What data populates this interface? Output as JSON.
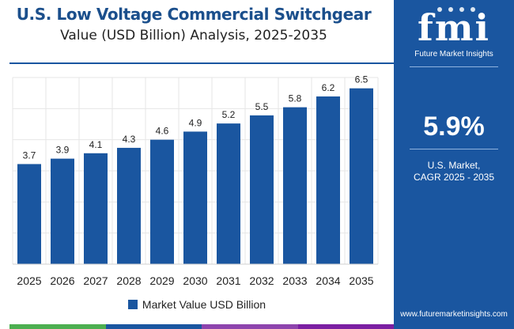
{
  "header": {
    "title": "U.S. Low Voltage Commercial Switchgear",
    "subtitle": "Value (USD Billion) Analysis, 2025-2035"
  },
  "colors": {
    "bar": "#1a56a0",
    "title": "#1b4f8c",
    "panel": "#1a56a0",
    "grid": "#e6e6e6",
    "rule": "#1a56a0",
    "bottom_stripes": [
      "#4caf50",
      "#1a56a0",
      "#8e44ad",
      "#7b1fa2"
    ]
  },
  "chart_data": {
    "type": "bar",
    "title": "U.S. Low Voltage Commercial Switchgear",
    "subtitle": "Value (USD Billion) Analysis, 2025-2035",
    "categories": [
      "2025",
      "2026",
      "2027",
      "2028",
      "2029",
      "2030",
      "2031",
      "2032",
      "2033",
      "2034",
      "2035"
    ],
    "series": [
      {
        "name": "Market Value USD Billion",
        "values": [
          3.7,
          3.9,
          4.1,
          4.3,
          4.6,
          4.9,
          5.2,
          5.5,
          5.8,
          6.2,
          6.5
        ]
      }
    ],
    "value_labels": [
      "3.7",
      "3.9",
      "4.1",
      "4.3",
      "4.6",
      "4.9",
      "5.2",
      "5.5",
      "5.8",
      "6.2",
      "6.5"
    ],
    "xlabel": "",
    "ylabel": "",
    "ylim": [
      0,
      6.9
    ],
    "grid": true,
    "legend": "bottom-center"
  },
  "legend": {
    "label": "Market Value USD Billion"
  },
  "side_panel": {
    "logo_text": "fmi",
    "logo_subtitle": "Future Market Insights",
    "cagr_value": "5.9%",
    "cagr_label_line1": "U.S. Market,",
    "cagr_label_line2": "CAGR 2025 - 2035",
    "website": "www.futuremarketinsights.com"
  }
}
